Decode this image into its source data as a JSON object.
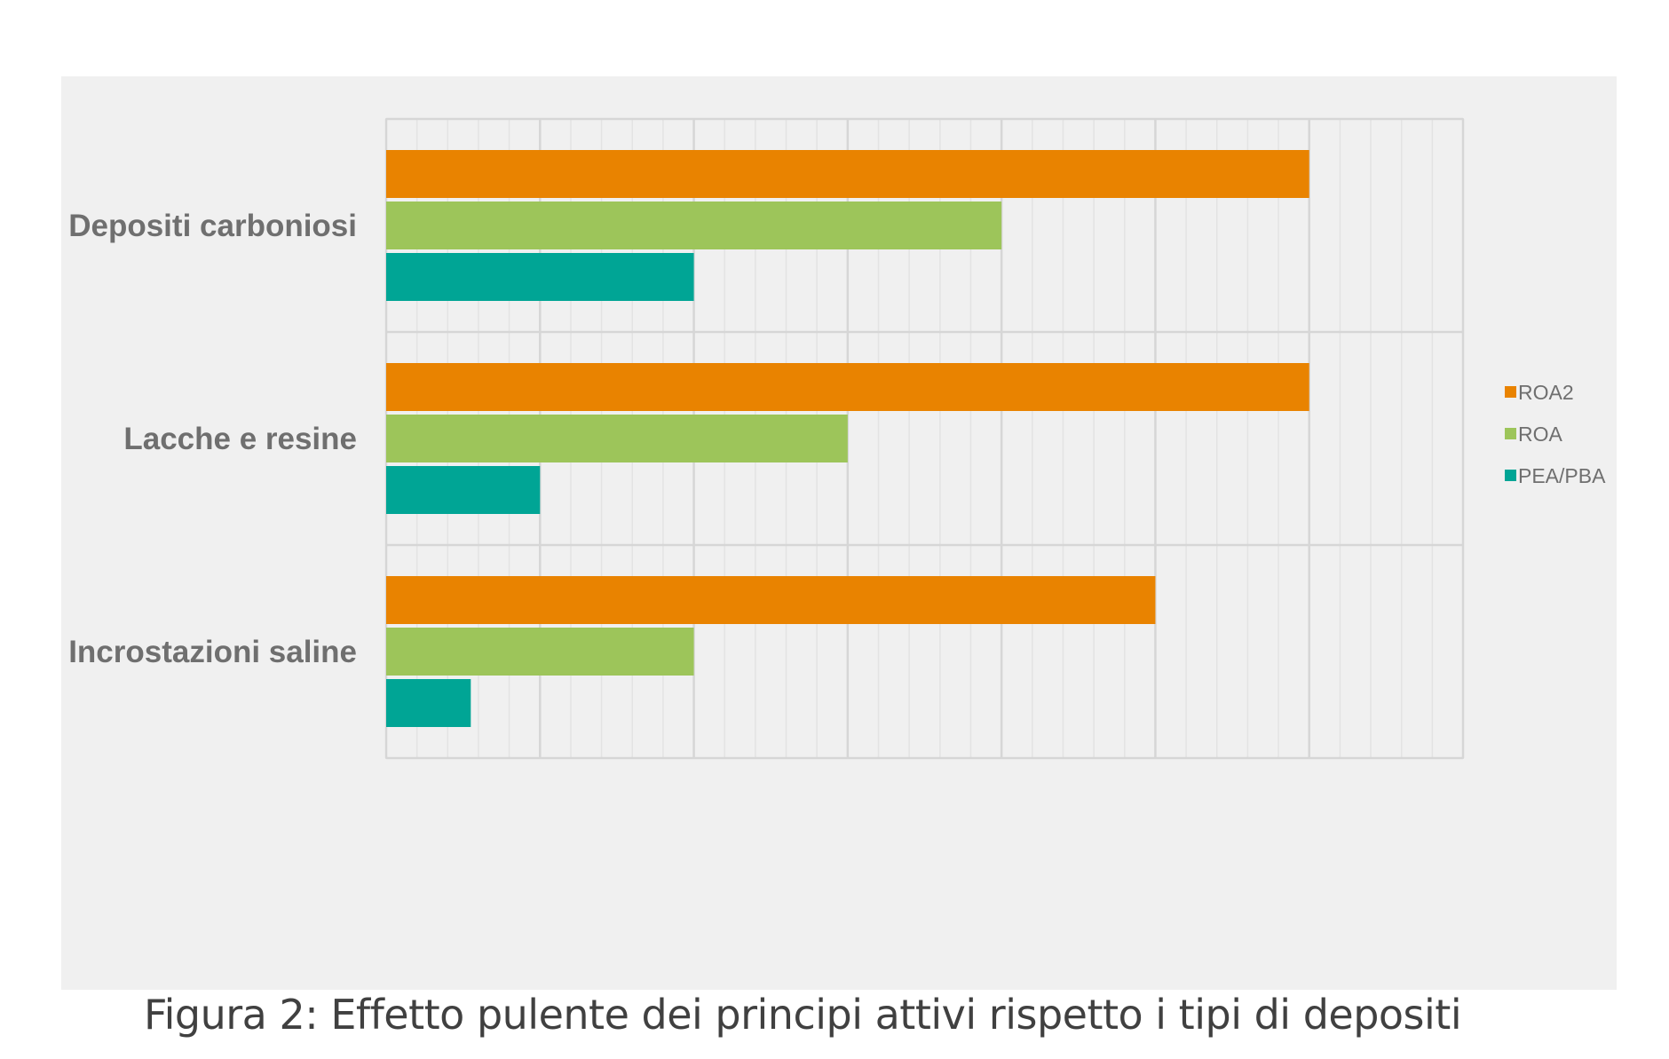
{
  "caption": "Figura 2: Effetto pulente dei principi attivi rispetto i tipi di depositi",
  "chart_data": {
    "type": "bar",
    "orientation": "horizontal",
    "categories": [
      "Depositi carboniosi",
      "Lacche e resine",
      "Incrostazioni saline"
    ],
    "series": [
      {
        "name": "ROA2",
        "color": "#e98300",
        "values": [
          6,
          6,
          5
        ]
      },
      {
        "name": "ROA",
        "color": "#9dc55a",
        "values": [
          4,
          3,
          2
        ]
      },
      {
        "name": "PEA/PBA",
        "color": "#00a595",
        "values": [
          2,
          1,
          0.55
        ]
      }
    ],
    "xlim": [
      0,
      7
    ],
    "grid": true,
    "tick_labels_shown": false,
    "legend_position": "right"
  }
}
